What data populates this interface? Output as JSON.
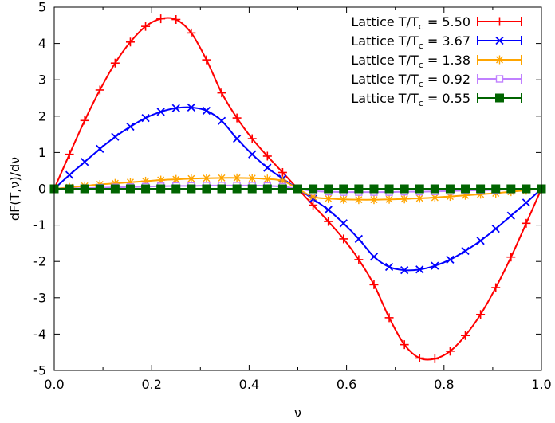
{
  "chart_data": {
    "type": "line",
    "title": "",
    "xlabel": "ν",
    "ylabel": "dF(T,ν)/dν",
    "xlim": [
      0.0,
      1.0
    ],
    "ylim": [
      -5,
      5
    ],
    "xticks": [
      0.0,
      0.2,
      0.4,
      0.6,
      0.8,
      1.0
    ],
    "xtick_labels": [
      "0.0",
      "0.2",
      "0.4",
      "0.6",
      "0.8",
      "1.0"
    ],
    "yticks": [
      -5,
      -4,
      -3,
      -2,
      -1,
      0,
      1,
      2,
      3,
      4,
      5
    ],
    "ytick_labels": [
      "-5",
      "-4",
      "-3",
      "-2",
      "-1",
      "0",
      "1",
      "2",
      "3",
      "4",
      "5"
    ],
    "grid": false,
    "legend_position": "top-right",
    "x": [
      0.0,
      0.03125,
      0.0625,
      0.09375,
      0.125,
      0.15625,
      0.1875,
      0.21875,
      0.25,
      0.28125,
      0.3125,
      0.34375,
      0.375,
      0.40625,
      0.4375,
      0.46875,
      0.5,
      0.53125,
      0.5625,
      0.59375,
      0.625,
      0.65625,
      0.6875,
      0.71875,
      0.75,
      0.78125,
      0.8125,
      0.84375,
      0.875,
      0.90625,
      0.9375,
      0.96875,
      1.0
    ],
    "series": [
      {
        "label_main": "Lattice T/T",
        "label_sub": "c",
        "label_value": " = 5.50",
        "color": "#ff0000",
        "marker": "plus",
        "values": [
          0.0,
          0.95,
          1.88,
          2.72,
          3.46,
          4.04,
          4.47,
          4.68,
          4.66,
          4.29,
          3.55,
          2.64,
          1.95,
          1.38,
          0.9,
          0.45,
          0.0,
          -0.45,
          -0.9,
          -1.38,
          -1.95,
          -2.64,
          -3.55,
          -4.29,
          -4.66,
          -4.68,
          -4.47,
          -4.04,
          -3.46,
          -2.72,
          -1.88,
          -0.95,
          0.0
        ]
      },
      {
        "label_main": "Lattice T/T",
        "label_sub": "c",
        "label_value": " = 3.67",
        "color": "#0000ff",
        "marker": "x",
        "values": [
          0.0,
          0.38,
          0.74,
          1.1,
          1.43,
          1.71,
          1.95,
          2.12,
          2.22,
          2.24,
          2.15,
          1.87,
          1.38,
          0.95,
          0.58,
          0.28,
          0.0,
          -0.28,
          -0.58,
          -0.95,
          -1.38,
          -1.87,
          -2.15,
          -2.24,
          -2.22,
          -2.12,
          -1.95,
          -1.71,
          -1.43,
          -1.1,
          -0.74,
          -0.38,
          0.0
        ]
      },
      {
        "label_main": "Lattice T/T",
        "label_sub": "c",
        "label_value": " = 1.38",
        "color": "#ffa500",
        "marker": "star",
        "values": [
          0.0,
          0.04,
          0.08,
          0.12,
          0.15,
          0.18,
          0.21,
          0.24,
          0.26,
          0.28,
          0.29,
          0.3,
          0.3,
          0.29,
          0.27,
          0.22,
          0.0,
          -0.22,
          -0.27,
          -0.29,
          -0.3,
          -0.3,
          -0.29,
          -0.28,
          -0.26,
          -0.24,
          -0.21,
          -0.18,
          -0.15,
          -0.12,
          -0.08,
          -0.04,
          0.0
        ]
      },
      {
        "label_main": "Lattice T/T",
        "label_sub": "c",
        "label_value": " = 0.92",
        "color": "#c080ff",
        "marker": "square-open",
        "values": [
          0.0,
          0.01,
          0.02,
          0.03,
          0.04,
          0.05,
          0.06,
          0.07,
          0.08,
          0.08,
          0.09,
          0.09,
          0.09,
          0.09,
          0.08,
          0.06,
          0.0,
          -0.06,
          -0.08,
          -0.09,
          -0.09,
          -0.09,
          -0.09,
          -0.08,
          -0.08,
          -0.07,
          -0.06,
          -0.05,
          -0.04,
          -0.03,
          -0.02,
          -0.01,
          0.0
        ]
      },
      {
        "label_main": "Lattice T/T",
        "label_sub": "c",
        "label_value": " = 0.55",
        "color": "#006400",
        "marker": "square-filled",
        "values": [
          0.0,
          0.0,
          0.0,
          0.0,
          0.0,
          0.0,
          0.0,
          0.0,
          0.0,
          0.0,
          0.0,
          0.0,
          0.0,
          0.0,
          0.0,
          0.0,
          0.0,
          0.0,
          0.0,
          0.0,
          0.0,
          0.0,
          0.0,
          0.0,
          0.0,
          0.0,
          0.0,
          0.0,
          0.0,
          0.0,
          0.0,
          0.0,
          0.0
        ]
      }
    ]
  }
}
